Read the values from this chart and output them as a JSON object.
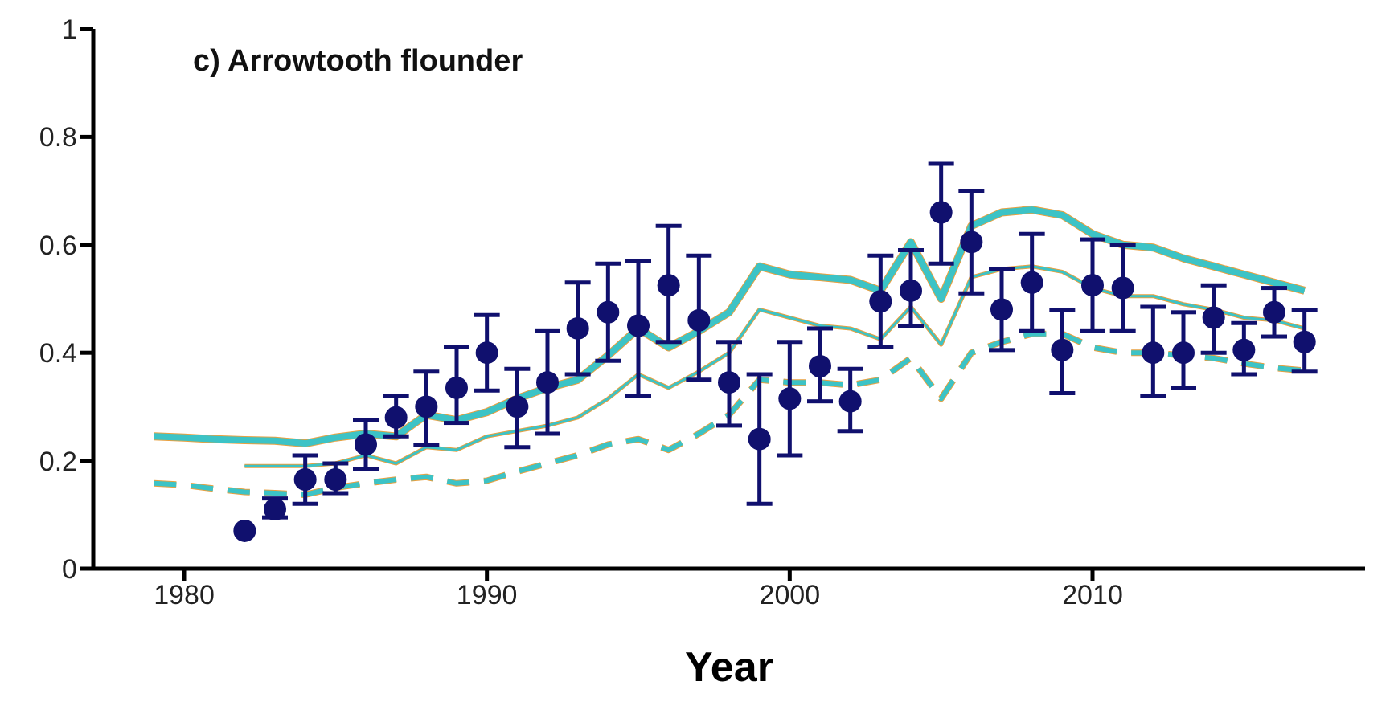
{
  "chart_data": {
    "type": "line",
    "title": "c) Arrowtooth flounder",
    "xlabel": "Year",
    "x": [
      1979,
      1980,
      1981,
      1982,
      1983,
      1984,
      1985,
      1986,
      1987,
      1988,
      1989,
      1990,
      1991,
      1992,
      1993,
      1994,
      1995,
      1996,
      1997,
      1998,
      1999,
      2000,
      2001,
      2002,
      2003,
      2004,
      2005,
      2006,
      2007,
      2008,
      2009,
      2010,
      2011,
      2012,
      2013,
      2014,
      2015,
      2016,
      2017
    ],
    "series": [
      {
        "color": "#e8a040",
        "line_style": "solid",
        "values": [
          0.245,
          0.243,
          0.24,
          0.238,
          0.237,
          0.232,
          0.243,
          0.25,
          0.245,
          0.285,
          0.275,
          0.29,
          0.315,
          0.335,
          0.35,
          0.395,
          0.445,
          0.41,
          0.44,
          0.475,
          0.56,
          0.545,
          0.54,
          0.535,
          0.515,
          0.605,
          0.5,
          0.635,
          0.66,
          0.665,
          0.655,
          0.62,
          0.6,
          0.595,
          0.575,
          0.56,
          0.545,
          0.53,
          0.515
        ]
      },
      {
        "color": "#3cc3c6",
        "line_style": "solid",
        "values": [
          0.245,
          0.243,
          0.24,
          0.238,
          0.237,
          0.232,
          0.243,
          0.25,
          0.245,
          0.285,
          0.275,
          0.29,
          0.315,
          0.335,
          0.35,
          0.395,
          0.445,
          0.41,
          0.44,
          0.475,
          0.56,
          0.545,
          0.54,
          0.535,
          0.515,
          0.605,
          0.5,
          0.635,
          0.66,
          0.665,
          0.655,
          0.62,
          0.6,
          0.595,
          0.575,
          0.56,
          0.545,
          0.53,
          0.515
        ]
      },
      {
        "color": "#e8a040",
        "line_style": "solid",
        "x": [
          1982,
          1983,
          1984,
          1985,
          1986,
          1987,
          1988,
          1989,
          1990,
          1991,
          1992,
          1993,
          1994,
          1995,
          1996,
          1997,
          1998,
          1999,
          2000,
          2001,
          2002,
          2003,
          2004,
          2005,
          2006,
          2007,
          2008,
          2009,
          2010,
          2011,
          2012,
          2013,
          2014,
          2015,
          2016,
          2017
        ],
        "values": [
          0.19,
          0.19,
          0.19,
          0.195,
          0.21,
          0.195,
          0.225,
          0.22,
          0.245,
          0.255,
          0.265,
          0.28,
          0.315,
          0.36,
          0.335,
          0.365,
          0.4,
          0.48,
          0.465,
          0.45,
          0.445,
          0.425,
          0.485,
          0.415,
          0.54,
          0.555,
          0.56,
          0.55,
          0.52,
          0.505,
          0.505,
          0.49,
          0.48,
          0.465,
          0.46,
          0.445
        ]
      },
      {
        "color": "#3cc3c6",
        "line_style": "solid",
        "x": [
          1982,
          1983,
          1984,
          1985,
          1986,
          1987,
          1988,
          1989,
          1990,
          1991,
          1992,
          1993,
          1994,
          1995,
          1996,
          1997,
          1998,
          1999,
          2000,
          2001,
          2002,
          2003,
          2004,
          2005,
          2006,
          2007,
          2008,
          2009,
          2010,
          2011,
          2012,
          2013,
          2014,
          2015,
          2016,
          2017
        ],
        "values": [
          0.19,
          0.19,
          0.19,
          0.195,
          0.21,
          0.195,
          0.225,
          0.22,
          0.245,
          0.255,
          0.265,
          0.28,
          0.315,
          0.36,
          0.335,
          0.365,
          0.4,
          0.48,
          0.465,
          0.45,
          0.445,
          0.425,
          0.485,
          0.415,
          0.54,
          0.555,
          0.56,
          0.55,
          0.52,
          0.505,
          0.505,
          0.49,
          0.48,
          0.465,
          0.46,
          0.445
        ]
      },
      {
        "color": "#e8a040",
        "line_style": "dashed",
        "values": [
          0.158,
          0.155,
          0.148,
          0.142,
          0.14,
          0.137,
          0.15,
          0.158,
          0.165,
          0.17,
          0.158,
          0.163,
          0.18,
          0.195,
          0.21,
          0.23,
          0.24,
          0.22,
          0.25,
          0.285,
          0.35,
          0.345,
          0.345,
          0.34,
          0.35,
          0.39,
          0.315,
          0.4,
          0.42,
          0.435,
          0.435,
          0.41,
          0.4,
          0.4,
          0.395,
          0.39,
          0.38,
          0.372,
          0.367
        ]
      },
      {
        "color": "#3cc3c6",
        "line_style": "dashed",
        "values": [
          0.158,
          0.155,
          0.148,
          0.142,
          0.14,
          0.137,
          0.15,
          0.158,
          0.165,
          0.17,
          0.158,
          0.163,
          0.18,
          0.195,
          0.21,
          0.23,
          0.24,
          0.22,
          0.25,
          0.285,
          0.35,
          0.345,
          0.345,
          0.34,
          0.35,
          0.39,
          0.315,
          0.4,
          0.42,
          0.435,
          0.435,
          0.41,
          0.4,
          0.4,
          0.395,
          0.39,
          0.38,
          0.372,
          0.367
        ]
      },
      {
        "type": "scatter",
        "color": "#10106e",
        "marker": "circle",
        "x": [
          1982,
          1983,
          1984,
          1985,
          1986,
          1987,
          1988,
          1989,
          1990,
          1991,
          1992,
          1993,
          1994,
          1995,
          1996,
          1997,
          1998,
          1999,
          2000,
          2001,
          2002,
          2003,
          2004,
          2005,
          2006,
          2007,
          2008,
          2009,
          2010,
          2011,
          2012,
          2013,
          2014,
          2015,
          2016,
          2017
        ],
        "values": [
          0.07,
          0.11,
          0.165,
          0.165,
          0.23,
          0.28,
          0.3,
          0.335,
          0.4,
          0.3,
          0.345,
          0.445,
          0.475,
          0.45,
          0.525,
          0.46,
          0.345,
          0.24,
          0.315,
          0.375,
          0.31,
          0.495,
          0.515,
          0.66,
          0.605,
          0.48,
          0.53,
          0.405,
          0.525,
          0.52,
          0.4,
          0.4,
          0.465,
          0.405,
          0.475,
          0.42
        ],
        "errors": [
          null,
          [
            0.095,
            0.13
          ],
          [
            0.12,
            0.21
          ],
          [
            0.14,
            0.195
          ],
          [
            0.185,
            0.275
          ],
          [
            0.245,
            0.32
          ],
          [
            0.23,
            0.365
          ],
          [
            0.27,
            0.41
          ],
          [
            0.33,
            0.47
          ],
          [
            0.225,
            0.37
          ],
          [
            0.25,
            0.44
          ],
          [
            0.36,
            0.53
          ],
          [
            0.385,
            0.565
          ],
          [
            0.32,
            0.57
          ],
          [
            0.42,
            0.635
          ],
          [
            0.35,
            0.58
          ],
          [
            0.265,
            0.42
          ],
          [
            0.12,
            0.36
          ],
          [
            0.21,
            0.42
          ],
          [
            0.31,
            0.445
          ],
          [
            0.255,
            0.37
          ],
          [
            0.41,
            0.58
          ],
          [
            0.45,
            0.59
          ],
          [
            0.565,
            0.75
          ],
          [
            0.51,
            0.7
          ],
          [
            0.405,
            0.555
          ],
          [
            0.44,
            0.62
          ],
          [
            0.325,
            0.48
          ],
          [
            0.44,
            0.61
          ],
          [
            0.44,
            0.6
          ],
          [
            0.32,
            0.485
          ],
          [
            0.335,
            0.475
          ],
          [
            0.4,
            0.525
          ],
          [
            0.36,
            0.455
          ],
          [
            0.43,
            0.52
          ],
          [
            0.365,
            0.48
          ]
        ]
      }
    ],
    "xlim": [
      1977,
      2019
    ],
    "xticks": [
      1980,
      1990,
      2000,
      2010
    ],
    "ylim": [
      0,
      1
    ],
    "yticks": [
      0,
      0.2,
      0.4,
      0.6,
      0.8,
      1
    ],
    "grid": false,
    "marker": "none"
  }
}
